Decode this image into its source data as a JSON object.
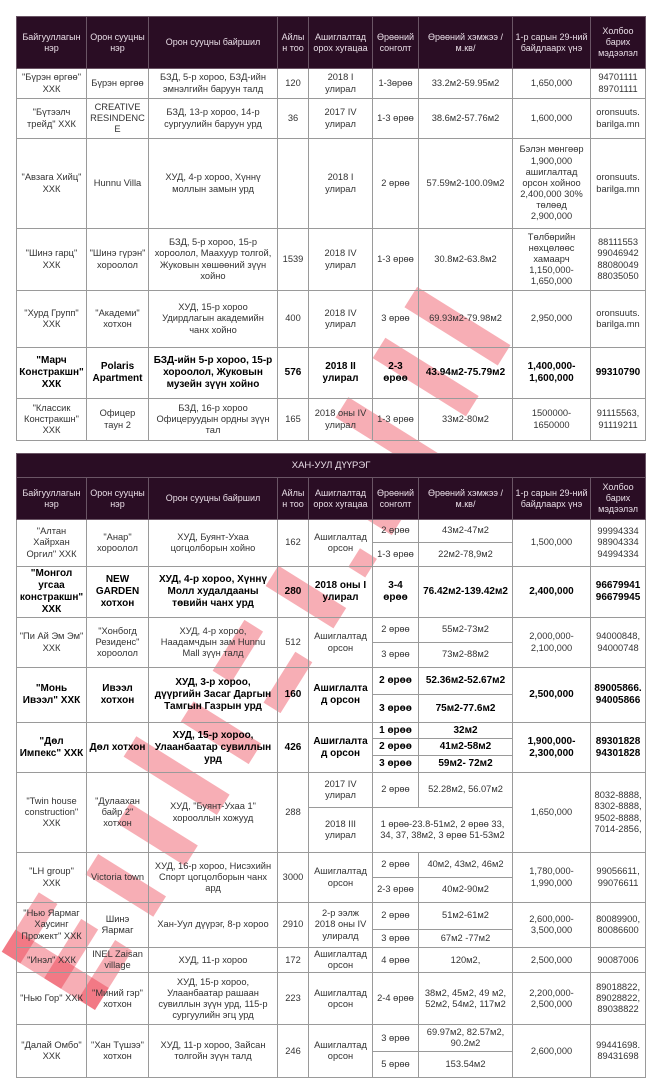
{
  "watermark": "Barilga.MN",
  "colors": {
    "header_bg": "#2a0d24",
    "header_text": "#e8dde6",
    "watermark": "#e8182a"
  },
  "headers": [
    "Байгууллагын нэр",
    "Орон сууцны нэр",
    "Орон сууцны байршил",
    "Айлын тоо",
    "Ашиглалтад орох хугацаа",
    "Өрөөний сонголт",
    "Өрөөний хэмжээ /м.кв/",
    "1-р сарын 29-ний байдлаарх үнэ",
    "Холбоо барих мэдээлэл"
  ],
  "table1": [
    {
      "company": "\"Бүрэн өргөө\" ХХК",
      "name": "Бүрэн өргөө",
      "location": "БЗД, 5-р хороо, БЗД-ийн эмнэлгийн баруун талд",
      "units": "120",
      "completion": "2018 I улирал",
      "options": [
        {
          "rooms": "1-3өрөө",
          "size": "33.2м2-59.95м2"
        }
      ],
      "price": "1,650,000",
      "contact": "94701111 89701111"
    },
    {
      "company": "\"Бүтээлч трейд\" ХХК",
      "name": "CREATIVE RESINDENCE",
      "location": "БЗД, 13-р хороо, 14-р сургуулийн баруун урд",
      "units": "36",
      "completion": "2017 IV улирал",
      "options": [
        {
          "rooms": "1-3 өрөө",
          "size": "38.6м2-57.76м2"
        }
      ],
      "price": "1,600,000",
      "contact": "oronsuuts. barilga.mn"
    },
    {
      "company": "\"Авзага Хийц\" ХХК",
      "name": "Hunnu Villa",
      "location": "ХУД, 4-р хороо, Хүннү моллын замын урд",
      "units": "",
      "completion": "2018 I улирал",
      "options": [
        {
          "rooms": "2 өрөө",
          "size": "57.59м2-100.09м2"
        }
      ],
      "price": "Бэлэн мөнгөөр 1,900,000 ашиглалтад орсон хойноо 2,400,000 30% төлөөд 2,900,000",
      "contact": "oronsuuts. barilga.mn"
    },
    {
      "company": "\"Шинэ гарц\" ХХК",
      "name": "\"Шинэ гүрэн\" хороолол",
      "location": "БЗД, 5-р хороо, 15-р хороолол, Маахуур толгой, Жуковын хөшөөний зүүн хойно",
      "units": "1539",
      "completion": "2018 IV улирал",
      "options": [
        {
          "rooms": "1-3 өрөө",
          "size": "30.8м2-63.8м2"
        }
      ],
      "price": "Төлбөрийн нөхцөлөөс хамаарч 1,150,000-1,650,000",
      "contact": "88111553 99046942 88080049 88035050"
    },
    {
      "company": "\"Хурд Групп\" ХХК",
      "name": "\"Академи\" хотхон",
      "location": "ХУД, 15-р хороо Удирдлагын академийн чанх хойно",
      "units": "400",
      "completion": "2018 IV улирал",
      "options": [
        {
          "rooms": "3 өрөө",
          "size": "69.93м2-79.98м2"
        }
      ],
      "price": "2,950,000",
      "contact": "oronsuuts. barilga.mn"
    },
    {
      "bold": true,
      "company": "\"Марч Констракшн\" ХХК",
      "name": "Polaris Apartment",
      "location": "БЗД-ийн 5-р хороо, 15-р хороолол, Жуковын музейн зүүн хойно",
      "units": "576",
      "completion": "2018 II улирал",
      "options": [
        {
          "rooms": "2-3 өрөө",
          "size": "43.94м2-75.79м2"
        }
      ],
      "price": "1,400,000-1,600,000",
      "contact": "99310790"
    },
    {
      "company": "\"Классик Констракшн\" ХХК",
      "name": "Офицер таун 2",
      "location": "БЗД, 16-р хороо Офицеруудын ордны зүүн тал",
      "units": "165",
      "completion": "2018 оны IV улирал",
      "options": [
        {
          "rooms": "1-3 өрөө",
          "size": "33м2-80м2"
        }
      ],
      "price": "1500000-1650000",
      "contact": "91115563, 91119211"
    }
  ],
  "section2_title": "ХАН-УУЛ ДҮҮРЭГ",
  "table2": [
    {
      "company": "\"Алтан Хайрхан Оргил\" ХХК",
      "name": "\"Анар\" хороолол",
      "location": "ХУД, Буянт-Ухаа цогцолборын хойно",
      "units": "162",
      "completion": "Ашиглалтад орсон",
      "options": [
        {
          "rooms": "2 өрөө",
          "size": "43м2-47м2"
        },
        {
          "rooms": "1-3 өрөө",
          "size": "22м2-78,9м2"
        }
      ],
      "price": "1,500,000",
      "contact": "99994334 98904334 94994334"
    },
    {
      "bold": true,
      "company": "\"Монгол угсаа констракшн\" ХХК",
      "name": "NEW GARDEN хотхон",
      "location": "ХУД, 4-р хороо, Хүннү Молл худалдааны төвийн чанх урд",
      "units": "280",
      "completion": "2018 оны I улирал",
      "options": [
        {
          "rooms": "3-4 өрөө",
          "size": "76.42м2-139.42м2"
        }
      ],
      "price": "2,400,000",
      "contact": "96679941 96679945"
    },
    {
      "company": "\"Пи Ай Эм Эм\" ХХК",
      "name": "\"Хонбогд Резиденс\" хороолол",
      "location": "ХУД, 4-р хороо, Наадамчдын зам Hunnu Mall зүүн талд",
      "units": "512",
      "completion": "Ашиглалтад орсон",
      "options": [
        {
          "rooms": "2 өрөө",
          "size": "55м2-73м2"
        },
        {
          "rooms": "3 өрөө",
          "size": "73м2-88м2"
        }
      ],
      "price": "2,000,000-2,100,000",
      "contact": "94000848, 94000748"
    },
    {
      "bold": true,
      "company": "\"Монь Ивээл\" ХХК",
      "name": "Ивээл хотхон",
      "location": "ХУД, 3-р хороо, дүүргийн Засаг Даргын Тамгын Газрын урд",
      "units": "160",
      "completion": "Ашиглалтад орсон",
      "options": [
        {
          "rooms": "2 өрөө",
          "size": "52.36м2-52.67м2"
        },
        {
          "rooms": "3 өрөө",
          "size": "75м2-77.6м2"
        }
      ],
      "price": "2,500,000",
      "contact": "89005866. 94005866"
    },
    {
      "bold": true,
      "company": "\"Дөл Импекс\" ХХК",
      "name": "Дөл хотхон",
      "location": "ХУД, 15-р хороо, Улаанбаатар сувиллын урд",
      "units": "426",
      "completion": "Ашиглалтад орсон",
      "options": [
        {
          "rooms": "1 өрөө",
          "size": "32м2"
        },
        {
          "rooms": "2 өрөө",
          "size": "41м2-58м2"
        },
        {
          "rooms": "3 өрөө",
          "size": "59м2- 72м2"
        }
      ],
      "price": "1,900,000-2,300,000",
      "contact": "89301828 94301828"
    },
    {
      "company": "\"Twin house construction\" ХХК",
      "name": "\"Дулаахан байр 2\" хотхон",
      "location": "ХУД, \"Буянт-Ухаа 1\" хорооллын хожууд",
      "units": "288",
      "options": [
        {
          "completion": "2017 IV улирал",
          "rooms": "2 өрөө",
          "size": "52.28м2, 56.07м2"
        },
        {
          "completion": "2018 III улирал",
          "size": "1 өрөө-23.8-51м2, 2 өрөө 33, 34, 37, 38м2, 3 өрөө 51-53м2"
        }
      ],
      "price": "1,650,000",
      "contact": "8032-8888, 8302-8888, 9502-8888, 7014-2856,"
    },
    {
      "company": "\"LH group\" ХХК",
      "name": "Victoria town",
      "location": "ХУД, 16-р хороо, Нисэхийн Спорт цогцолборын чанх ард",
      "units": "3000",
      "completion": "Ашиглалтад орсон",
      "options": [
        {
          "rooms": "2 өрөө",
          "size": "40м2, 43м2, 46м2"
        },
        {
          "rooms": "2-3 өрөө",
          "size": "40м2-90м2"
        }
      ],
      "price": "1,780,000-1,990,000",
      "contact": "99056611, 99076611"
    },
    {
      "company": "\"Нью Яармаг Хаусинг Прожект\" ХХК",
      "name": "Шинэ Яармаг",
      "location": "Хан-Уул дүүрэг, 8-р хороо",
      "units": "2910",
      "completion": "2-р ээлж 2018 оны IV улиралд",
      "options": [
        {
          "rooms": "2 өрөө",
          "size": "51м2-61м2"
        },
        {
          "rooms": "3 өрөө",
          "size": "67м2 -77м2"
        }
      ],
      "price": "2,600,000-3,500,000",
      "contact": "80089900, 80086600"
    },
    {
      "company": "\"Инэл\" ХХК",
      "name": "INEL Zaisan village",
      "location": "ХУД, 11-р хороо",
      "units": "172",
      "completion": "Ашиглалтад орсон",
      "options": [
        {
          "rooms": "4 өрөө",
          "size": "120м2,"
        }
      ],
      "price": "2,500,000",
      "contact": "90087006"
    },
    {
      "company": "\"Нью Гор\" ХХК",
      "name": "\"Миний гэр\" хотхон",
      "location": "ХУД, 15-р хороо, Улаанбаатар рашаан сувиллын зүүн урд, 115-р сургуулийн эгц урд",
      "units": "223",
      "completion": "Ашиглалтад орсон",
      "options": [
        {
          "rooms": "2-4 өрөө",
          "size": "38м2, 45м2, 49 м2, 52м2, 54м2, 117м2"
        }
      ],
      "price": "2,200,000-2,500,000",
      "contact": "89018822, 89028822, 89038822"
    },
    {
      "company": "\"Далай Омбо\" ХХК",
      "name": "\"Хан Түшээ\" хотхон",
      "location": "ХУД, 11-р хороо, Зайсан толгойн зүүн талд",
      "units": "246",
      "completion": "Ашиглалтад орсон",
      "options": [
        {
          "rooms": "3 өрөө",
          "size": "69.97м2, 82.57м2, 90.2м2"
        },
        {
          "rooms": "5 өрөө",
          "size": "153.54м2"
        }
      ],
      "price": "2,600,000",
      "contact": "99441698. 89431698"
    }
  ]
}
